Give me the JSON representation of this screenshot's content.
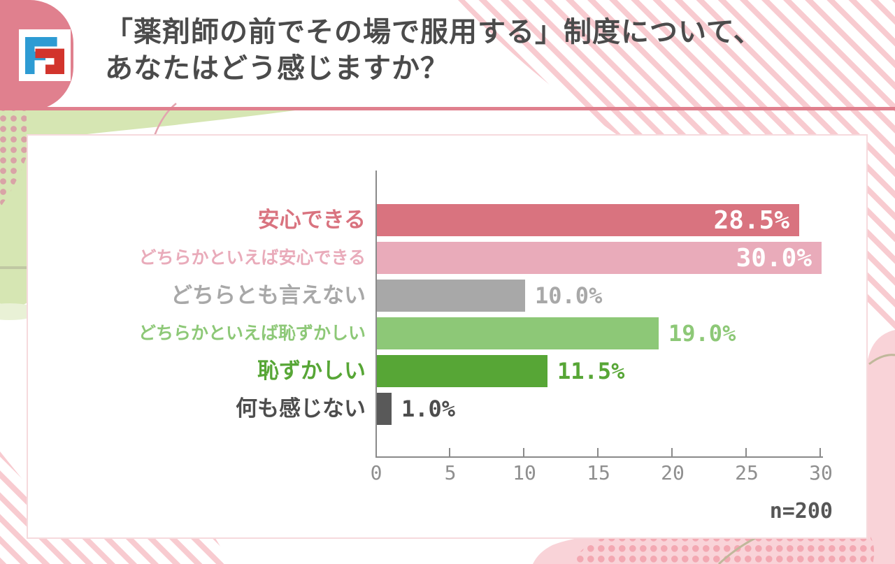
{
  "header": {
    "title_line1": "「薬剤師の前でその場で服用する」制度について、",
    "title_line2": "あなたはどう感じますか？",
    "logo": "brand-logo-FF-monogram"
  },
  "chart_data": {
    "type": "bar",
    "orientation": "horizontal",
    "categories": [
      "安心できる",
      "どちらかといえば安心できる",
      "どちらとも言えない",
      "どちらかといえば恥ずかしい",
      "恥ずかしい",
      "何も感じない"
    ],
    "values": [
      28.5,
      30.0,
      10.0,
      19.0,
      11.5,
      1.0
    ],
    "value_labels": [
      "28.5%",
      "30.0%",
      "10.0%",
      "19.0%",
      "11.5%",
      "1.0%"
    ],
    "value_inside_bar": [
      true,
      true,
      false,
      false,
      false,
      false
    ],
    "bar_colors": [
      "#d9737f",
      "#e9abba",
      "#a8a8a8",
      "#8dc877",
      "#57a636",
      "#595959"
    ],
    "label_colors": [
      "#d9737f",
      "#e9abba",
      "#a8a8a8",
      "#8dc877",
      "#57a636",
      "#4d4d4d"
    ],
    "xlim": [
      0,
      30
    ],
    "xticks": [
      "0",
      "5",
      "10",
      "15",
      "20",
      "25",
      "30"
    ],
    "grid": false,
    "legend": false,
    "sample_note": "n=200"
  },
  "colors": {
    "accent_pink": "#e0808e",
    "stripe_pink": "#f8cbd0",
    "blob_green": "#d6e6b3",
    "dots_rose": "#d9a3a6",
    "blob_pink": "#f9d3d8",
    "dots_pink": "#f3a8b2",
    "beige_line": "#c0b89b",
    "title_text": "#4b4b4b",
    "axis_gray": "#8a8a8a",
    "logo_blue": "#2d9bd3",
    "logo_red": "#d2342c"
  }
}
